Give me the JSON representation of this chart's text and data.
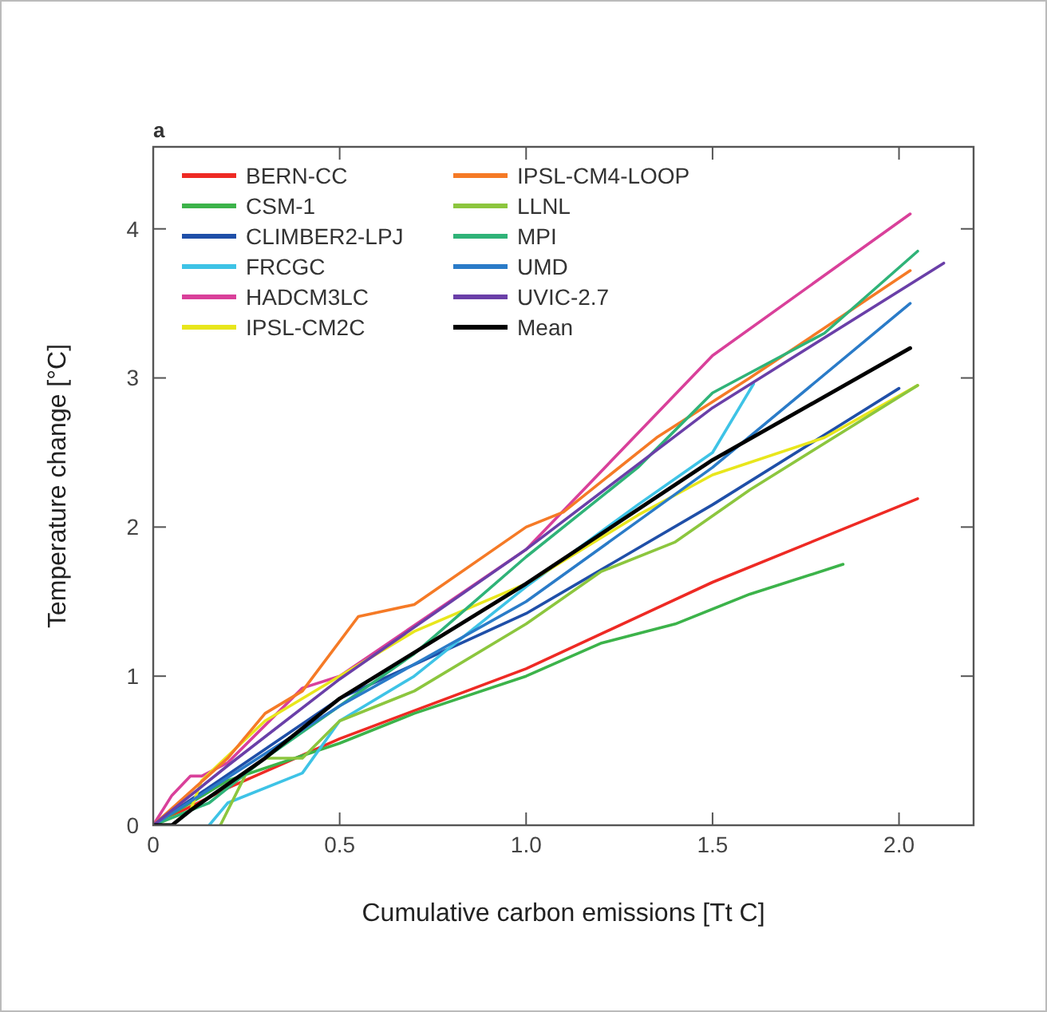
{
  "chart_data": {
    "type": "line",
    "xlabel": "Cumulative carbon emissions [Tt C]",
    "ylabel": "Temperature change [°C]",
    "annotations": [
      "a"
    ],
    "xlim": [
      0,
      2.2
    ],
    "ylim": [
      0,
      4.55
    ],
    "xticks": [
      0,
      {
        "value": 0.5,
        "label": "0.5"
      },
      {
        "value": 1,
        "label": "1.0"
      },
      {
        "value": 1.5,
        "label": "1.5"
      },
      {
        "value": 2,
        "label": "2.0"
      }
    ],
    "yticks": [
      0,
      1,
      2,
      3,
      4
    ],
    "grid": false,
    "legend": "top left",
    "line_style": "solid",
    "series": [
      {
        "name": "BERN-CC",
        "color": "#ee2a24",
        "x": [
          0,
          0.2,
          0.5,
          1.0,
          1.5,
          2.05
        ],
        "values": [
          0,
          0.25,
          0.58,
          1.05,
          1.63,
          2.19
        ]
      },
      {
        "name": "CSM-1",
        "color": "#3cb34a",
        "x": [
          0,
          0.2,
          0.5,
          0.7,
          1.0,
          1.2,
          1.4,
          1.6,
          1.85
        ],
        "values": [
          0,
          0.3,
          0.55,
          0.75,
          1.0,
          1.22,
          1.35,
          1.55,
          1.75
        ]
      },
      {
        "name": "CLIMBER2-LPJ",
        "color": "#1f4fa8",
        "x": [
          0,
          0.5,
          1.0,
          1.5,
          2.0
        ],
        "values": [
          0,
          0.85,
          1.42,
          2.15,
          2.93
        ]
      },
      {
        "name": "FRCGC",
        "color": "#3ec3e6",
        "x": [
          0.15,
          0.2,
          0.4,
          0.5,
          0.7,
          1.0,
          1.3,
          1.5,
          1.61
        ],
        "values": [
          0,
          0.15,
          0.35,
          0.7,
          1.0,
          1.6,
          2.15,
          2.5,
          2.96
        ]
      },
      {
        "name": "HADCM3LC",
        "color": "#d9409a",
        "x": [
          0,
          0.05,
          0.1,
          0.13,
          0.2,
          0.4,
          0.5,
          1.0,
          1.5,
          2.03
        ],
        "values": [
          0,
          0.2,
          0.33,
          0.33,
          0.42,
          0.92,
          1.0,
          1.85,
          3.15,
          4.1
        ]
      },
      {
        "name": "IPSL-CM2C",
        "color": "#e8e61c",
        "x": [
          0,
          0.1,
          0.13,
          0.3,
          0.5,
          0.7,
          1.0,
          1.3,
          1.5,
          1.8,
          2.05
        ],
        "values": [
          0,
          0.1,
          0.3,
          0.7,
          1.0,
          1.3,
          1.62,
          2.08,
          2.35,
          2.6,
          2.95
        ]
      },
      {
        "name": "IPSL-CM4-LOOP",
        "color": "#f57a26",
        "x": [
          0,
          0.2,
          0.3,
          0.4,
          0.55,
          0.7,
          1.0,
          1.1,
          1.35,
          1.6,
          2.03
        ],
        "values": [
          0,
          0.45,
          0.75,
          0.9,
          1.4,
          1.48,
          2.0,
          2.1,
          2.6,
          3.0,
          3.72
        ]
      },
      {
        "name": "LLNL",
        "color": "#8cc63e",
        "x": [
          0.18,
          0.25,
          0.3,
          0.4,
          0.5,
          0.7,
          1.0,
          1.2,
          1.4,
          1.6,
          2.05
        ],
        "values": [
          0,
          0.35,
          0.45,
          0.45,
          0.7,
          0.9,
          1.35,
          1.7,
          1.9,
          2.25,
          2.95
        ]
      },
      {
        "name": "MPI",
        "color": "#2fb378",
        "x": [
          0,
          0.15,
          0.3,
          0.5,
          0.7,
          1.0,
          1.3,
          1.5,
          1.8,
          2.05
        ],
        "values": [
          0,
          0.15,
          0.45,
          0.8,
          1.15,
          1.8,
          2.4,
          2.9,
          3.3,
          3.85
        ]
      },
      {
        "name": "UMD",
        "color": "#2a7bc8",
        "x": [
          0,
          0.5,
          1.0,
          1.5,
          2.03
        ],
        "values": [
          0,
          0.8,
          1.5,
          2.4,
          3.5
        ]
      },
      {
        "name": "UVIC-2.7",
        "color": "#6a3fa8",
        "x": [
          0,
          0.2,
          0.5,
          1.0,
          1.5,
          2.12
        ],
        "values": [
          0,
          0.4,
          0.98,
          1.85,
          2.8,
          3.77
        ]
      },
      {
        "name": "Mean",
        "color": "#000000",
        "x": [
          0,
          0.05,
          0.1,
          0.3,
          0.5,
          1.0,
          1.5,
          2.03
        ],
        "values": [
          0,
          0,
          0.1,
          0.45,
          0.85,
          1.62,
          2.45,
          3.2
        ]
      }
    ]
  }
}
